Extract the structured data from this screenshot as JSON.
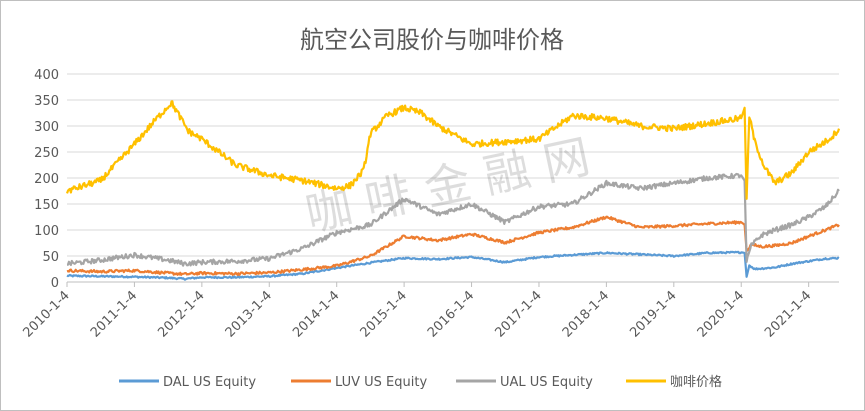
{
  "chart_data": {
    "type": "line",
    "title": "航空公司股价与咖啡价格",
    "xlabel": "",
    "ylabel": "",
    "ylim": [
      0,
      400
    ],
    "yticks": [
      0,
      50,
      100,
      150,
      200,
      250,
      300,
      350,
      400
    ],
    "x_tick_labels": [
      "2010-1-4",
      "2011-1-4",
      "2012-1-4",
      "2013-1-4",
      "2014-1-4",
      "2015-1-4",
      "2016-1-4",
      "2017-1-4",
      "2018-1-4",
      "2019-1-4",
      "2020-1-4",
      "2021-1-4"
    ],
    "x_range": [
      2010.0,
      2021.45
    ],
    "grid": "horizontal",
    "legend_position": "bottom",
    "watermark": "咖 啡 金 融 网",
    "series": [
      {
        "name": "DAL US Equity",
        "color": "#5B9BD5",
        "points": [
          [
            2010.0,
            12
          ],
          [
            2010.5,
            11
          ],
          [
            2011.0,
            10
          ],
          [
            2011.5,
            8
          ],
          [
            2011.75,
            6
          ],
          [
            2012.0,
            9
          ],
          [
            2012.5,
            9
          ],
          [
            2013.0,
            11
          ],
          [
            2013.5,
            16
          ],
          [
            2014.0,
            27
          ],
          [
            2014.5,
            37
          ],
          [
            2015.0,
            46
          ],
          [
            2015.5,
            44
          ],
          [
            2016.0,
            48
          ],
          [
            2016.5,
            38
          ],
          [
            2017.0,
            48
          ],
          [
            2017.5,
            52
          ],
          [
            2018.0,
            56
          ],
          [
            2018.5,
            53
          ],
          [
            2019.0,
            50
          ],
          [
            2019.5,
            56
          ],
          [
            2020.0,
            57
          ],
          [
            2020.05,
            56
          ],
          [
            2020.08,
            10
          ],
          [
            2020.12,
            32
          ],
          [
            2020.2,
            25
          ],
          [
            2020.5,
            28
          ],
          [
            2020.75,
            35
          ],
          [
            2021.0,
            40
          ],
          [
            2021.25,
            45
          ],
          [
            2021.45,
            46
          ]
        ]
      },
      {
        "name": "LUV US Equity",
        "color": "#ED7D31",
        "points": [
          [
            2010.0,
            22
          ],
          [
            2010.5,
            20
          ],
          [
            2011.0,
            22
          ],
          [
            2011.5,
            17
          ],
          [
            2011.75,
            15
          ],
          [
            2012.0,
            17
          ],
          [
            2012.5,
            16
          ],
          [
            2013.0,
            18
          ],
          [
            2013.5,
            24
          ],
          [
            2014.0,
            31
          ],
          [
            2014.5,
            50
          ],
          [
            2015.0,
            88
          ],
          [
            2015.5,
            80
          ],
          [
            2016.0,
            92
          ],
          [
            2016.5,
            76
          ],
          [
            2017.0,
            95
          ],
          [
            2017.5,
            105
          ],
          [
            2018.0,
            125
          ],
          [
            2018.5,
            105
          ],
          [
            2019.0,
            108
          ],
          [
            2019.5,
            112
          ],
          [
            2020.0,
            115
          ],
          [
            2020.05,
            110
          ],
          [
            2020.08,
            60
          ],
          [
            2020.15,
            72
          ],
          [
            2020.3,
            68
          ],
          [
            2020.5,
            70
          ],
          [
            2020.75,
            75
          ],
          [
            2021.0,
            88
          ],
          [
            2021.25,
            100
          ],
          [
            2021.45,
            110
          ]
        ]
      },
      {
        "name": "UAL US Equity",
        "color": "#A5A5A5",
        "points": [
          [
            2010.0,
            35
          ],
          [
            2010.5,
            42
          ],
          [
            2011.0,
            52
          ],
          [
            2011.5,
            42
          ],
          [
            2011.75,
            35
          ],
          [
            2012.0,
            38
          ],
          [
            2012.5,
            40
          ],
          [
            2013.0,
            45
          ],
          [
            2013.5,
            65
          ],
          [
            2014.0,
            95
          ],
          [
            2014.5,
            110
          ],
          [
            2015.0,
            160
          ],
          [
            2015.5,
            130
          ],
          [
            2016.0,
            150
          ],
          [
            2016.5,
            115
          ],
          [
            2017.0,
            145
          ],
          [
            2017.5,
            150
          ],
          [
            2018.0,
            190
          ],
          [
            2018.5,
            180
          ],
          [
            2019.0,
            190
          ],
          [
            2019.5,
            200
          ],
          [
            2020.0,
            205
          ],
          [
            2020.05,
            195
          ],
          [
            2020.08,
            40
          ],
          [
            2020.15,
            70
          ],
          [
            2020.3,
            90
          ],
          [
            2020.5,
            100
          ],
          [
            2020.75,
            110
          ],
          [
            2021.0,
            125
          ],
          [
            2021.25,
            145
          ],
          [
            2021.45,
            175
          ]
        ]
      },
      {
        "name": "咖啡价格",
        "color": "#FFC000",
        "points": [
          [
            2010.0,
            175
          ],
          [
            2010.5,
            195
          ],
          [
            2011.0,
            265
          ],
          [
            2011.3,
            310
          ],
          [
            2011.55,
            345
          ],
          [
            2011.8,
            290
          ],
          [
            2012.0,
            275
          ],
          [
            2012.5,
            225
          ],
          [
            2013.0,
            205
          ],
          [
            2013.5,
            195
          ],
          [
            2014.0,
            180
          ],
          [
            2014.2,
            185
          ],
          [
            2014.4,
            215
          ],
          [
            2014.5,
            285
          ],
          [
            2014.75,
            320
          ],
          [
            2015.0,
            335
          ],
          [
            2015.25,
            325
          ],
          [
            2015.5,
            300
          ],
          [
            2016.0,
            265
          ],
          [
            2016.5,
            270
          ],
          [
            2017.0,
            275
          ],
          [
            2017.5,
            320
          ],
          [
            2018.0,
            315
          ],
          [
            2018.5,
            300
          ],
          [
            2019.0,
            295
          ],
          [
            2019.5,
            305
          ],
          [
            2020.0,
            315
          ],
          [
            2020.05,
            335
          ],
          [
            2020.08,
            160
          ],
          [
            2020.12,
            320
          ],
          [
            2020.2,
            270
          ],
          [
            2020.35,
            220
          ],
          [
            2020.5,
            190
          ],
          [
            2020.75,
            210
          ],
          [
            2021.0,
            250
          ],
          [
            2021.25,
            270
          ],
          [
            2021.35,
            280
          ],
          [
            2021.45,
            295
          ]
        ]
      }
    ]
  }
}
